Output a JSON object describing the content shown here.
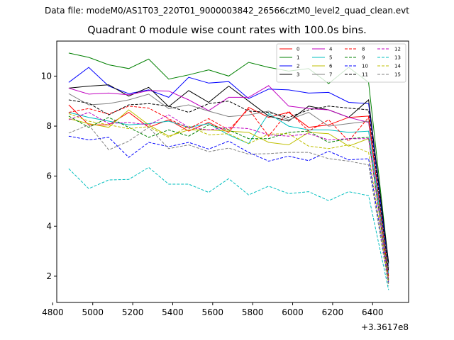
{
  "suptitle": "Data file: modeM0/AS1T03_220T01_9000003842_26566cztM0_level2_quad_clean.evt",
  "chart_data": {
    "type": "line",
    "title": "Quadrant 0 module wise count rates with 100.0s bins.",
    "xlabel": "",
    "ylabel": "",
    "x_offset_label": "+3.3617e8",
    "xlim": [
      4820,
      4880,
      6580
    ],
    "ylim": [
      0.95,
      11.4
    ],
    "xticks": [
      4800,
      5000,
      5200,
      5400,
      5600,
      5800,
      6000,
      6200,
      6400
    ],
    "xtick_labels": [
      "4800",
      "5000",
      "5200",
      "5400",
      "5600",
      "5800",
      "6000",
      "6200",
      "6400"
    ],
    "yticks": [
      2,
      4,
      6,
      8,
      10
    ],
    "ytick_labels": [
      "2",
      "4",
      "6",
      "8",
      "10"
    ],
    "x": [
      4880,
      4980,
      5080,
      5180,
      5280,
      5380,
      5480,
      5580,
      5680,
      5780,
      5880,
      5980,
      6080,
      6180,
      6280,
      6380,
      6480
    ],
    "series": [
      {
        "name": "0",
        "color": "#ff0000",
        "dash": false,
        "values": [
          8.85,
          8.05,
          8.05,
          8.55,
          7.95,
          8.25,
          7.8,
          8.15,
          7.75,
          8.75,
          8.35,
          8.55,
          7.95,
          8.05,
          8.35,
          8.4,
          2.0
        ]
      },
      {
        "name": "1",
        "color": "#008000",
        "dash": false,
        "values": [
          10.92,
          10.75,
          10.45,
          10.3,
          10.68,
          9.88,
          10.05,
          10.25,
          10.0,
          10.55,
          10.35,
          10.2,
          10.3,
          9.7,
          10.35,
          9.75,
          2.5
        ]
      },
      {
        "name": "2",
        "color": "#0000ff",
        "dash": false,
        "values": [
          9.75,
          10.35,
          9.6,
          9.3,
          9.45,
          9.15,
          9.95,
          9.72,
          9.78,
          9.1,
          9.48,
          9.45,
          9.32,
          9.35,
          8.95,
          8.9,
          2.35
        ]
      },
      {
        "name": "3",
        "color": "#000000",
        "dash": false,
        "values": [
          9.52,
          9.6,
          9.65,
          9.2,
          9.55,
          8.78,
          9.42,
          8.95,
          9.6,
          9.0,
          8.4,
          8.2,
          8.8,
          8.65,
          8.35,
          9.05,
          2.55
        ]
      },
      {
        "name": "4",
        "color": "#c000c0",
        "dash": false,
        "values": [
          9.52,
          9.28,
          9.32,
          9.25,
          9.42,
          9.4,
          9.05,
          8.62,
          9.15,
          9.15,
          9.62,
          8.8,
          8.7,
          8.65,
          8.35,
          8.15,
          2.2
        ]
      },
      {
        "name": "5",
        "color": "#00bfbf",
        "dash": false,
        "values": [
          8.55,
          8.35,
          8.2,
          8.05,
          8.1,
          8.2,
          7.95,
          8.1,
          7.65,
          7.3,
          8.5,
          8.0,
          7.85,
          7.85,
          7.75,
          7.8,
          2.1
        ]
      },
      {
        "name": "6",
        "color": "#bfbf00",
        "dash": false,
        "values": [
          8.3,
          8.1,
          7.95,
          8.65,
          8.05,
          7.6,
          7.85,
          7.85,
          7.8,
          7.75,
          7.35,
          7.25,
          7.75,
          7.7,
          7.2,
          7.5,
          1.9
        ]
      },
      {
        "name": "7",
        "color": "#808080",
        "dash": false,
        "values": [
          9.3,
          8.85,
          8.9,
          9.05,
          9.28,
          8.7,
          8.85,
          8.6,
          8.38,
          8.45,
          8.6,
          8.25,
          8.55,
          8.0,
          8.1,
          8.2,
          2.3
        ]
      },
      {
        "name": "8",
        "color": "#ff0000",
        "dash": true,
        "values": [
          8.55,
          8.7,
          8.48,
          8.8,
          8.72,
          8.3,
          7.9,
          8.3,
          7.85,
          8.68,
          7.6,
          8.6,
          7.8,
          8.25,
          7.4,
          8.35,
          1.95
        ]
      },
      {
        "name": "9",
        "color": "#008000",
        "dash": true,
        "values": [
          8.4,
          7.95,
          8.35,
          7.95,
          7.55,
          7.85,
          7.6,
          8.05,
          7.85,
          7.5,
          7.5,
          7.75,
          7.8,
          7.35,
          7.5,
          7.55,
          1.85
        ]
      },
      {
        "name": "10",
        "color": "#0000ff",
        "dash": true,
        "values": [
          7.6,
          7.45,
          7.55,
          6.75,
          7.35,
          7.18,
          7.35,
          7.08,
          7.4,
          6.95,
          6.6,
          6.8,
          6.62,
          7.0,
          6.65,
          6.7,
          1.75
        ]
      },
      {
        "name": "11",
        "color": "#000000",
        "dash": true,
        "values": [
          9.05,
          8.92,
          8.45,
          8.85,
          8.9,
          8.8,
          8.55,
          8.9,
          9.0,
          8.6,
          8.55,
          8.35,
          8.65,
          8.8,
          8.72,
          8.65,
          2.2
        ]
      },
      {
        "name": "12",
        "color": "#c000c0",
        "dash": true,
        "values": [
          8.25,
          8.55,
          8.1,
          8.15,
          8.05,
          8.45,
          7.95,
          7.85,
          7.95,
          7.9,
          7.65,
          7.6,
          7.7,
          7.45,
          7.5,
          7.5,
          1.8
        ]
      },
      {
        "name": "13",
        "color": "#00bfbf",
        "dash": true,
        "values": [
          6.3,
          5.5,
          5.85,
          5.87,
          6.35,
          5.68,
          5.68,
          5.35,
          5.9,
          5.25,
          5.6,
          5.3,
          5.38,
          5.02,
          5.38,
          5.22,
          1.45
        ]
      },
      {
        "name": "14",
        "color": "#bfbf00",
        "dash": true,
        "values": [
          8.5,
          8.2,
          8.05,
          7.9,
          7.98,
          7.55,
          8.0,
          7.65,
          7.7,
          7.3,
          7.68,
          7.7,
          7.2,
          7.1,
          7.25,
          6.95,
          1.7
        ]
      },
      {
        "name": "15",
        "color": "#808080",
        "dash": true,
        "values": [
          7.72,
          8.05,
          7.05,
          7.4,
          7.95,
          7.1,
          7.25,
          6.98,
          7.12,
          6.88,
          6.9,
          6.95,
          6.95,
          6.7,
          6.6,
          6.45,
          1.6
        ]
      }
    ]
  }
}
